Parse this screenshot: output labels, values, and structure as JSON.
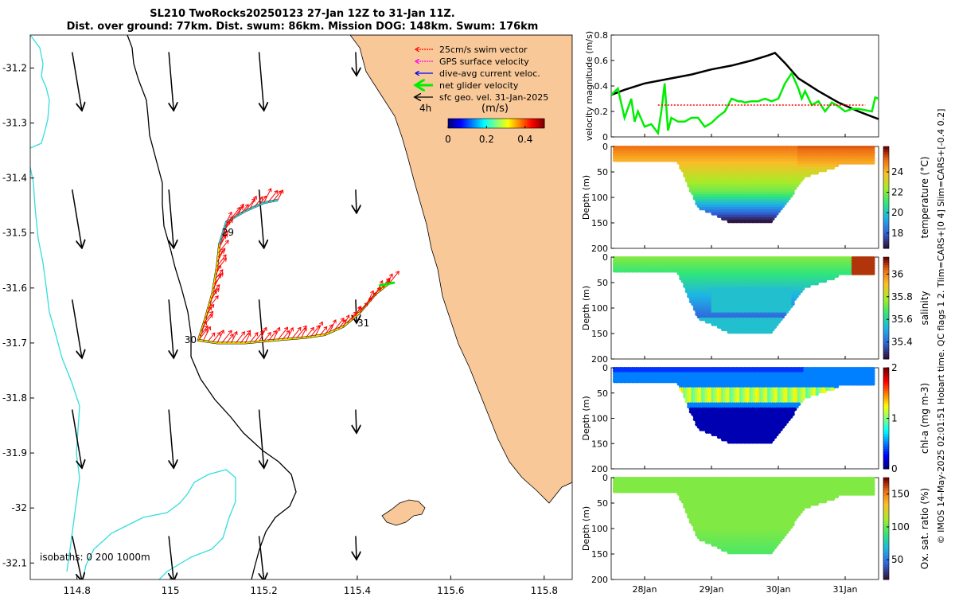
{
  "header": {
    "title_line1": "SL210 TwoRocks20250123 27-Jan 12Z to 31-Jan 11Z.",
    "title_line2": "Dist. over ground: 77km. Dist. swum: 86km. Mission DOG: 148km. Swum: 176km"
  },
  "side_note": "© IMOS 14-May-2025 02:01:51 Hobart time. QC flags 1  2. Tlim=CARS+[0 4] Slim=CARS+[-0.4 0.2]",
  "colors": {
    "land": "#f9c898",
    "isobath_200": "#000000",
    "isobath_1000": "#33dddd",
    "arrow": "#000000",
    "swim": "#ff0000",
    "net": "#00ee00",
    "line_black": "#000000"
  },
  "chart_data": [
    {
      "type": "map",
      "xlim": [
        114.7,
        115.86
      ],
      "ylim": [
        -32.13,
        -31.14
      ],
      "xticks": [
        114.8,
        115,
        115.2,
        115.4,
        115.6,
        115.8
      ],
      "xtick_labels": [
        "114.8",
        "115",
        "115.2",
        "115.4",
        "115.6",
        "115.8"
      ],
      "yticks": [
        -31.2,
        -31.3,
        -31.4,
        -31.5,
        -31.6,
        -31.7,
        -31.8,
        -31.9,
        -32,
        -32.1
      ],
      "ytick_labels": [
        "-31.2",
        "-31.3",
        "-31.4",
        "-31.5",
        "-31.6",
        "-31.7",
        "-31.8",
        "-31.9",
        "-32",
        "-32.1"
      ],
      "legend": {
        "items": [
          {
            "label": "25cm/s swim vector",
            "color": "#ff0000"
          },
          {
            "label": "GPS surface velocity",
            "color": "#ff00ff"
          },
          {
            "label": "dive-avg current veloc.",
            "color": "#0000ff"
          },
          {
            "label": "net glider velocity",
            "color": "#00ee00"
          },
          {
            "label": "sfc geo. vel. 31-Jan-2025",
            "color": "#000000"
          }
        ],
        "scale_label": "4h",
        "colorbar_title": "(m/s)",
        "colorbar_ticks": [
          "0",
          "0.2",
          "0.4"
        ],
        "colorbar_range": [
          0,
          0.5
        ]
      },
      "day_labels": [
        {
          "text": "29",
          "lon": 115.11,
          "lat": -31.505
        },
        {
          "text": "30",
          "lon": 115.03,
          "lat": -31.7
        },
        {
          "text": "31",
          "lon": 115.4,
          "lat": -31.67
        }
      ],
      "isobath_label": "isobaths: 0   200  1000m",
      "track": [
        [
          115.23,
          -31.44
        ],
        [
          115.2,
          -31.445
        ],
        [
          115.16,
          -31.46
        ],
        [
          115.12,
          -31.48
        ],
        [
          115.105,
          -31.52
        ],
        [
          115.1,
          -31.56
        ],
        [
          115.09,
          -31.61
        ],
        [
          115.075,
          -31.655
        ],
        [
          115.06,
          -31.695
        ],
        [
          115.1,
          -31.7
        ],
        [
          115.16,
          -31.7
        ],
        [
          115.22,
          -31.695
        ],
        [
          115.29,
          -31.69
        ],
        [
          115.33,
          -31.685
        ],
        [
          115.37,
          -31.67
        ],
        [
          115.405,
          -31.645
        ],
        [
          115.44,
          -31.61
        ],
        [
          115.47,
          -31.59
        ]
      ],
      "geo_arrow_lons": [
        114.8,
        115.0,
        115.2,
        115.4
      ],
      "geo_arrow_lats": [
        -31.2,
        -31.45,
        -31.65,
        -31.85,
        -32.08
      ]
    },
    {
      "type": "line",
      "ylabel": "velocity magnitude (m/s)",
      "ylim": [
        0,
        0.8
      ],
      "yticks": [
        0,
        0.2,
        0.4,
        0.6,
        0.8
      ],
      "xlim": [
        27.5,
        31.5
      ],
      "series": [
        {
          "name": "cumulative",
          "color": "#000000",
          "x": [
            27.5,
            27.7,
            28.0,
            28.3,
            28.7,
            29.0,
            29.3,
            29.6,
            29.85,
            29.95,
            30.1,
            30.3,
            30.6,
            30.9,
            31.2,
            31.4,
            31.5
          ],
          "y": [
            0.33,
            0.37,
            0.42,
            0.45,
            0.49,
            0.53,
            0.56,
            0.6,
            0.64,
            0.66,
            0.58,
            0.46,
            0.36,
            0.27,
            0.2,
            0.16,
            0.14
          ]
        },
        {
          "name": "net glider velocity",
          "color": "#00ee00",
          "x": [
            27.5,
            27.6,
            27.7,
            27.8,
            27.85,
            27.9,
            28.0,
            28.1,
            28.2,
            28.25,
            28.3,
            28.35,
            28.4,
            28.5,
            28.6,
            28.7,
            28.8,
            28.9,
            29.0,
            29.1,
            29.2,
            29.3,
            29.4,
            29.45,
            29.5,
            29.6,
            29.7,
            29.8,
            29.9,
            30.0,
            30.1,
            30.2,
            30.25,
            30.3,
            30.35,
            30.4,
            30.5,
            30.6,
            30.7,
            30.8,
            30.9,
            31.0,
            31.1,
            31.2,
            31.3,
            31.4,
            31.45,
            31.5
          ],
          "y": [
            0.33,
            0.38,
            0.15,
            0.3,
            0.12,
            0.2,
            0.08,
            0.1,
            0.03,
            0.2,
            0.42,
            0.05,
            0.15,
            0.12,
            0.12,
            0.15,
            0.15,
            0.08,
            0.11,
            0.16,
            0.2,
            0.3,
            0.28,
            0.28,
            0.27,
            0.28,
            0.28,
            0.3,
            0.28,
            0.3,
            0.42,
            0.5,
            0.44,
            0.38,
            0.3,
            0.36,
            0.25,
            0.28,
            0.2,
            0.27,
            0.24,
            0.2,
            0.22,
            0.22,
            0.21,
            0.2,
            0.31,
            0.3
          ]
        },
        {
          "name": "swim reference",
          "color": "#ff0000",
          "x": [
            28.2,
            31.3
          ],
          "y": [
            0.25,
            0.25
          ]
        }
      ]
    },
    {
      "type": "heatmap",
      "variable": "temperature",
      "cbar_label": "temperature (°C)",
      "cbar_ticks": [
        "18",
        "20",
        "22",
        "24"
      ],
      "cbar_range": [
        16.5,
        26.5
      ],
      "ylabel": "Depth (m)",
      "yticks": [
        "0",
        "50",
        "100",
        "150",
        "200"
      ],
      "max_depth": 200
    },
    {
      "type": "heatmap",
      "variable": "salinity",
      "cbar_label": "salinity",
      "cbar_ticks": [
        "35.4",
        "35.6",
        "35.8",
        "36"
      ],
      "cbar_range": [
        35.25,
        36.15
      ],
      "ylabel": "Depth (m)",
      "yticks": [
        "0",
        "50",
        "100",
        "150",
        "200"
      ],
      "max_depth": 200
    },
    {
      "type": "heatmap",
      "variable": "chl-a",
      "cbar_label": "chl-a (mg m-3)",
      "cbar_ticks": [
        "0",
        "1",
        "2"
      ],
      "cbar_range": [
        0,
        2
      ],
      "ylabel": "Depth (m)",
      "yticks": [
        "0",
        "50",
        "100",
        "150",
        "200"
      ],
      "max_depth": 200
    },
    {
      "type": "heatmap",
      "variable": "oxygen",
      "cbar_label": "Ox. sat. ratio (%)",
      "cbar_ticks": [
        "50",
        "100",
        "150"
      ],
      "cbar_range": [
        20,
        175
      ],
      "ylabel": "Depth (m)",
      "yticks": [
        "0",
        "50",
        "100",
        "150",
        "200"
      ],
      "max_depth": 200,
      "xtick_labels": [
        "28Jan",
        "29Jan",
        "30Jan",
        "31Jan"
      ],
      "xticks": [
        28,
        29,
        30,
        31
      ]
    }
  ]
}
